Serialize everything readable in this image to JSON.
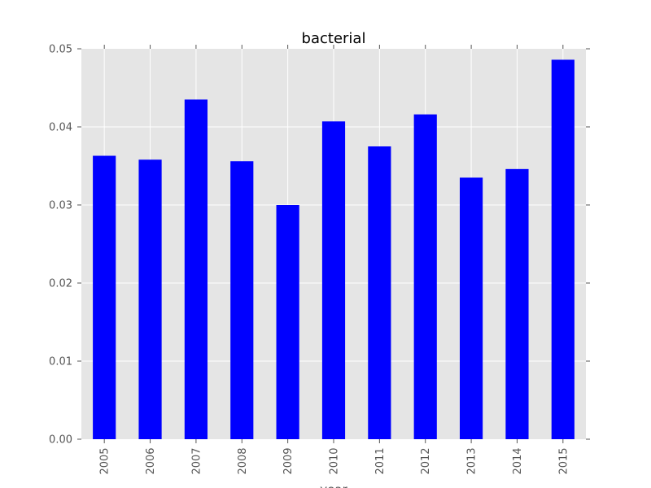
{
  "chart_data": {
    "type": "bar",
    "title": "bacterial",
    "xlabel": "year",
    "ylabel": "",
    "categories": [
      "2005",
      "2006",
      "2007",
      "2008",
      "2009",
      "2010",
      "2011",
      "2012",
      "2013",
      "2014",
      "2015"
    ],
    "values": [
      0.0363,
      0.0358,
      0.0435,
      0.0356,
      0.03,
      0.0407,
      0.0375,
      0.0416,
      0.0335,
      0.0346,
      0.0486
    ],
    "ylim": [
      0,
      0.05
    ],
    "yticks": [
      "0.00",
      "0.01",
      "0.02",
      "0.03",
      "0.04",
      "0.05"
    ],
    "grid": true,
    "legend": "none",
    "colors": {
      "bar": "#0000ff",
      "plot_background": "#e5e5e5",
      "grid": "#ffffff",
      "tick_text": "#555555",
      "title_text": "#000000"
    }
  }
}
